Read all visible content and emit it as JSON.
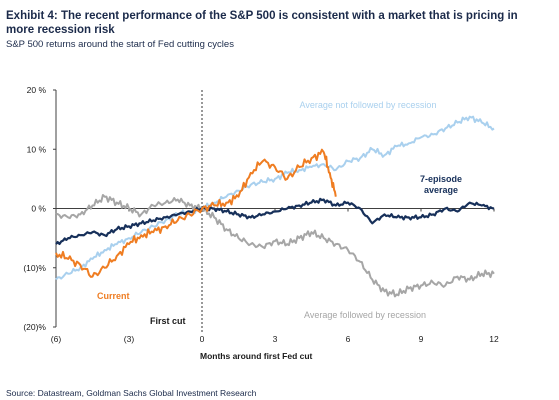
{
  "title": "Exhibit 4: The recent performance of the S&P 500 is consistent with a market that is pricing in more recession risk",
  "subtitle": "S&P 500 returns around the start of Fed cutting cycles",
  "source": "Source: Datastream, Goldman Sachs Global Investment Research",
  "chart_data": {
    "type": "line",
    "xlabel": "Months around first Fed cut",
    "ylabel": "",
    "xlim": [
      -6,
      12
    ],
    "ylim": [
      -20,
      20
    ],
    "x_ticks": [
      -6,
      -3,
      0,
      3,
      6,
      9,
      12
    ],
    "x_tick_labels": [
      "(6)",
      "(3)",
      "0",
      "3",
      "6",
      "9",
      "12"
    ],
    "y_ticks": [
      20,
      10,
      0,
      -10,
      -20
    ],
    "y_tick_labels": [
      "20 %",
      "10 %",
      "0 %",
      "(10)%",
      "(20)%"
    ],
    "grid": false,
    "annotations": {
      "first_cut": "First cut"
    },
    "colors": {
      "avg_not_recession": "#a9d0ee",
      "avg_recession": "#a6a6a6",
      "seven_episode": "#17305a",
      "current": "#ef7d22",
      "axis": "#404040"
    },
    "series": [
      {
        "name": "Average not followed by recession",
        "key": "avg_not_recession",
        "x": [
          -6,
          -5.5,
          -5,
          -4.5,
          -4,
          -3.5,
          -3,
          -2.5,
          -2,
          -1.5,
          -1,
          -0.5,
          0,
          0.5,
          1,
          1.5,
          2,
          2.5,
          3,
          3.5,
          4,
          4.5,
          5,
          5.5,
          6,
          6.5,
          7,
          7.5,
          8,
          8.5,
          9,
          9.5,
          10,
          10.5,
          11,
          11.5,
          12
        ],
        "y": [
          -12,
          -11,
          -10,
          -8.5,
          -7,
          -6,
          -5,
          -4,
          -3,
          -2,
          -1,
          -0.5,
          0,
          1,
          2,
          3,
          4,
          4.5,
          5,
          6,
          6.5,
          7,
          7.5,
          6.5,
          8,
          8.5,
          10,
          9,
          10.5,
          11,
          12,
          12.5,
          13.5,
          14.5,
          15.5,
          14.5,
          13.5
        ]
      },
      {
        "name": "Average followed by recession",
        "key": "avg_recession",
        "x": [
          -6,
          -5.5,
          -5,
          -4.5,
          -4,
          -3.5,
          -3,
          -2.5,
          -2,
          -1.5,
          -1,
          -0.5,
          0,
          0.5,
          1,
          1.5,
          2,
          2.5,
          3,
          3.5,
          4,
          4.5,
          5,
          5.5,
          6,
          6.5,
          7,
          7.5,
          8,
          8.5,
          9,
          9.5,
          10,
          10.5,
          11,
          11.5,
          12
        ],
        "y": [
          -1,
          -1.5,
          -1,
          0.5,
          2,
          1,
          0,
          -1,
          0.5,
          1,
          1.5,
          0.5,
          0,
          -1.5,
          -3.5,
          -5,
          -6,
          -6.5,
          -5.5,
          -6,
          -5,
          -4,
          -5,
          -6,
          -7,
          -9,
          -12,
          -14,
          -14.5,
          -13.5,
          -13,
          -12.5,
          -13,
          -11.5,
          -12,
          -11,
          -11
        ]
      },
      {
        "name": "7-episode average",
        "key": "seven_episode",
        "x": [
          -6,
          -5.5,
          -5,
          -4.5,
          -4,
          -3.5,
          -3,
          -2.5,
          -2,
          -1.5,
          -1,
          -0.5,
          0,
          0.5,
          1,
          1.5,
          2,
          2.5,
          3,
          3.5,
          4,
          4.5,
          5,
          5.5,
          6,
          6.5,
          7,
          7.5,
          8,
          8.5,
          9,
          9.5,
          10,
          10.5,
          11,
          11.5,
          12
        ],
        "y": [
          -6,
          -5,
          -4.5,
          -4,
          -4.5,
          -3.5,
          -3,
          -2.5,
          -2,
          -1.5,
          -1,
          -0.5,
          0,
          0,
          -0.5,
          -1,
          -1.5,
          -1,
          -0.5,
          0,
          0.5,
          1,
          1.5,
          0.5,
          1,
          0,
          -2.5,
          -1,
          -1.5,
          -1.5,
          -1.5,
          -1,
          0,
          -0.5,
          1,
          0.5,
          0
        ]
      },
      {
        "name": "Current",
        "key": "current",
        "x": [
          -6,
          -5.5,
          -5,
          -4.5,
          -4,
          -3.5,
          -3,
          -2.5,
          -2,
          -1.5,
          -1,
          -0.5,
          0,
          0.5,
          1,
          1.5,
          2,
          2.5,
          3,
          3.5,
          4,
          4.5,
          5,
          5.25,
          5.5
        ],
        "y": [
          -7.5,
          -8.5,
          -9.5,
          -11.5,
          -10,
          -8,
          -6,
          -4.5,
          -4,
          -3,
          -2,
          -1,
          0,
          0.5,
          1,
          2,
          6,
          8,
          7,
          5,
          7,
          8.5,
          9.5,
          6,
          2
        ]
      }
    ],
    "labels": {
      "avg_not_recession": "Average not followed by recession",
      "avg_recession": "Average followed by recession",
      "seven_episode_line1": "7-episode",
      "seven_episode_line2": "average",
      "current": "Current"
    }
  }
}
